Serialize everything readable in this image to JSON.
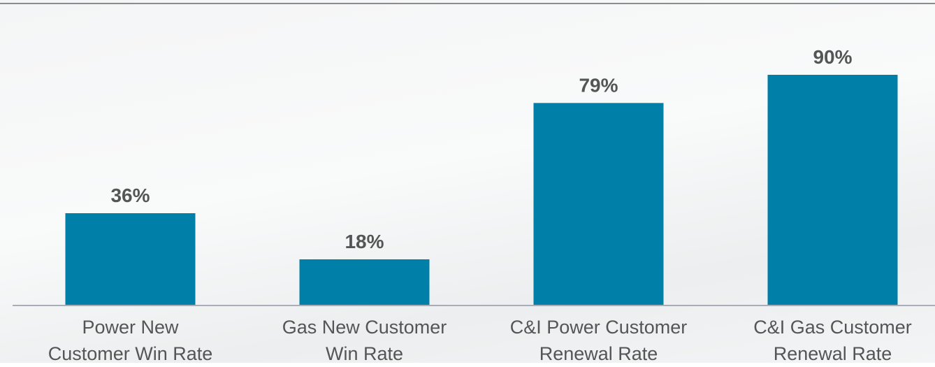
{
  "chart_data": {
    "type": "bar",
    "categories": [
      "Power New\nCustomer Win Rate",
      "Gas New Customer\nWin Rate",
      "C&I Power Customer\nRenewal Rate",
      "C&I Gas Customer\nRenewal Rate"
    ],
    "values": [
      36,
      18,
      79,
      90
    ],
    "value_labels": [
      "36%",
      "18%",
      "79%",
      "90%"
    ],
    "color": "#0080a8"
  }
}
